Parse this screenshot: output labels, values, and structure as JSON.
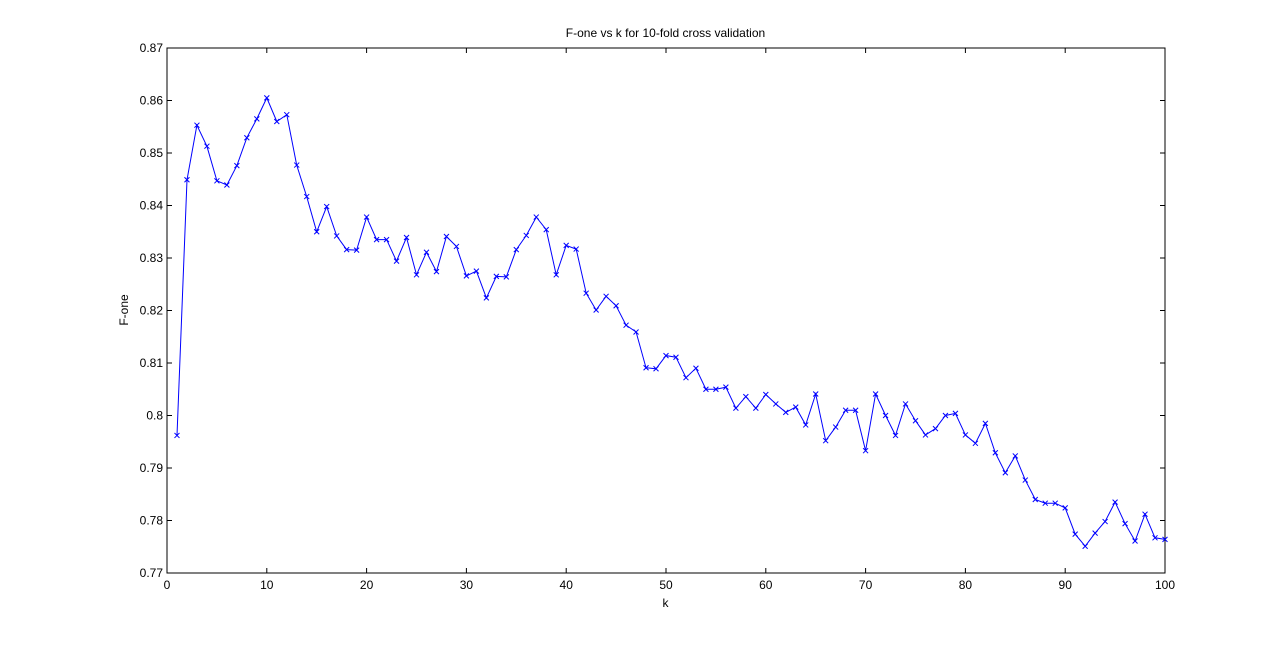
{
  "window": {
    "background": "#ffffff"
  },
  "chart_data": {
    "type": "line",
    "title": "F-one vs k for 10-fold cross validation",
    "xlabel": "k",
    "ylabel": "F-one",
    "xlim": [
      0,
      100
    ],
    "ylim": [
      0.77,
      0.87
    ],
    "xticks": [
      0,
      10,
      20,
      30,
      40,
      50,
      60,
      70,
      80,
      90,
      100
    ],
    "xtick_labels": [
      "0",
      "10",
      "20",
      "30",
      "40",
      "50",
      "60",
      "70",
      "80",
      "90",
      "100"
    ],
    "yticks": [
      0.77,
      0.78,
      0.79,
      0.8,
      0.81,
      0.82,
      0.83,
      0.84,
      0.85,
      0.86,
      0.87
    ],
    "ytick_labels": [
      "0.77",
      "0.78",
      "0.79",
      "0.8",
      "0.81",
      "0.82",
      "0.83",
      "0.84",
      "0.85",
      "0.86",
      "0.87"
    ],
    "grid": false,
    "legend": "none",
    "marker": "x",
    "series": [
      {
        "color": "#0000ff",
        "x": [
          1,
          2,
          3,
          4,
          5,
          6,
          7,
          8,
          9,
          10,
          11,
          12,
          13,
          14,
          15,
          16,
          17,
          18,
          19,
          20,
          21,
          22,
          23,
          24,
          25,
          26,
          27,
          28,
          29,
          30,
          31,
          32,
          33,
          34,
          35,
          36,
          37,
          38,
          39,
          40,
          41,
          42,
          43,
          44,
          45,
          46,
          47,
          48,
          49,
          50,
          51,
          52,
          53,
          54,
          55,
          56,
          57,
          58,
          59,
          60,
          61,
          62,
          63,
          64,
          65,
          66,
          67,
          68,
          69,
          70,
          71,
          72,
          73,
          74,
          75,
          76,
          77,
          78,
          79,
          80,
          81,
          82,
          83,
          84,
          85,
          86,
          87,
          88,
          89,
          90,
          91,
          92,
          93,
          94,
          95,
          96,
          97,
          98,
          99,
          100
        ],
        "y": [
          0.7962,
          0.8449,
          0.8553,
          0.8513,
          0.8447,
          0.8439,
          0.8476,
          0.8529,
          0.8565,
          0.8605,
          0.856,
          0.8573,
          0.8477,
          0.8417,
          0.835,
          0.8398,
          0.8342,
          0.8316,
          0.8315,
          0.8378,
          0.8335,
          0.8335,
          0.8294,
          0.8339,
          0.8268,
          0.8311,
          0.8274,
          0.8341,
          0.8322,
          0.8266,
          0.8275,
          0.8224,
          0.8265,
          0.8264,
          0.8316,
          0.8343,
          0.8378,
          0.8354,
          0.8268,
          0.8324,
          0.8317,
          0.8233,
          0.8201,
          0.8227,
          0.8209,
          0.8172,
          0.8159,
          0.8091,
          0.8089,
          0.8114,
          0.8111,
          0.8072,
          0.809,
          0.805,
          0.805,
          0.8054,
          0.8014,
          0.8036,
          0.8014,
          0.804,
          0.8022,
          0.8006,
          0.8016,
          0.7982,
          0.8041,
          0.7952,
          0.7978,
          0.801,
          0.801,
          0.7933,
          0.8041,
          0.8,
          0.7962,
          0.8022,
          0.799,
          0.7963,
          0.7975,
          0.8,
          0.8004,
          0.7963,
          0.7947,
          0.7985,
          0.7929,
          0.7891,
          0.7923,
          0.7877,
          0.784,
          0.7833,
          0.7833,
          0.7824,
          0.7774,
          0.7751,
          0.7776,
          0.7798,
          0.7835,
          0.7794,
          0.7761,
          0.7812,
          0.7767,
          0.7764
        ]
      }
    ]
  }
}
